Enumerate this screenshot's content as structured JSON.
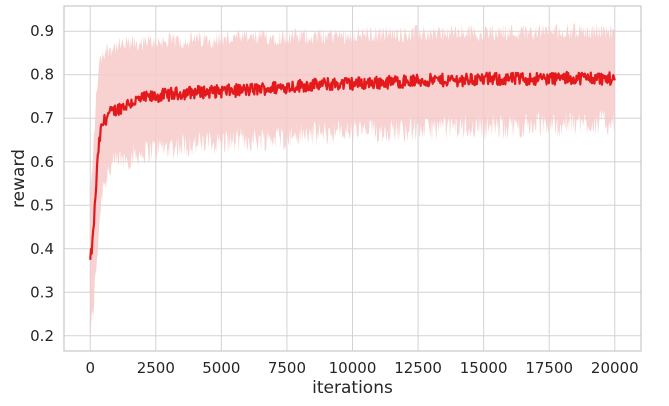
{
  "chart_data": {
    "type": "line",
    "title": "",
    "xlabel": "iterations",
    "ylabel": "reward",
    "xlim": [
      -1000,
      21000
    ],
    "ylim": [
      0.165,
      0.958
    ],
    "x_ticks": [
      0,
      2500,
      5000,
      7500,
      10000,
      12500,
      15000,
      17500,
      20000
    ],
    "y_ticks": [
      0.2,
      0.3,
      0.4,
      0.5,
      0.6,
      0.7,
      0.8,
      0.9
    ],
    "grid": true,
    "legend": "none",
    "series": [
      {
        "color": "#e3191c",
        "band_color": "#f7c9c9",
        "x": [
          0,
          100,
          200,
          300,
          400,
          500,
          700,
          1000,
          1500,
          2000,
          2500,
          3000,
          4000,
          5000,
          6000,
          7000,
          8000,
          9000,
          10000,
          11000,
          12000,
          13000,
          14000,
          15000,
          16000,
          17000,
          18000,
          19000,
          20000
        ],
        "mean": [
          0.37,
          0.42,
          0.52,
          0.62,
          0.67,
          0.69,
          0.71,
          0.72,
          0.735,
          0.745,
          0.75,
          0.755,
          0.76,
          0.762,
          0.765,
          0.77,
          0.775,
          0.778,
          0.78,
          0.782,
          0.785,
          0.787,
          0.788,
          0.79,
          0.79,
          0.791,
          0.792,
          0.793,
          0.79
        ],
        "lower": [
          0.2,
          0.25,
          0.33,
          0.42,
          0.5,
          0.55,
          0.58,
          0.6,
          0.61,
          0.62,
          0.63,
          0.635,
          0.64,
          0.645,
          0.65,
          0.655,
          0.66,
          0.665,
          0.67,
          0.67,
          0.675,
          0.675,
          0.68,
          0.68,
          0.68,
          0.685,
          0.685,
          0.69,
          0.69
        ],
        "upper": [
          0.52,
          0.6,
          0.72,
          0.8,
          0.84,
          0.85,
          0.86,
          0.865,
          0.87,
          0.872,
          0.875,
          0.877,
          0.88,
          0.882,
          0.885,
          0.887,
          0.888,
          0.89,
          0.892,
          0.893,
          0.894,
          0.895,
          0.896,
          0.897,
          0.898,
          0.899,
          0.9,
          0.9,
          0.9
        ]
      }
    ]
  },
  "colors": {
    "background": "#ffffff",
    "plot_background": "#ffffff",
    "grid": "#d3d3d3",
    "frame": "#c8c8c8"
  }
}
